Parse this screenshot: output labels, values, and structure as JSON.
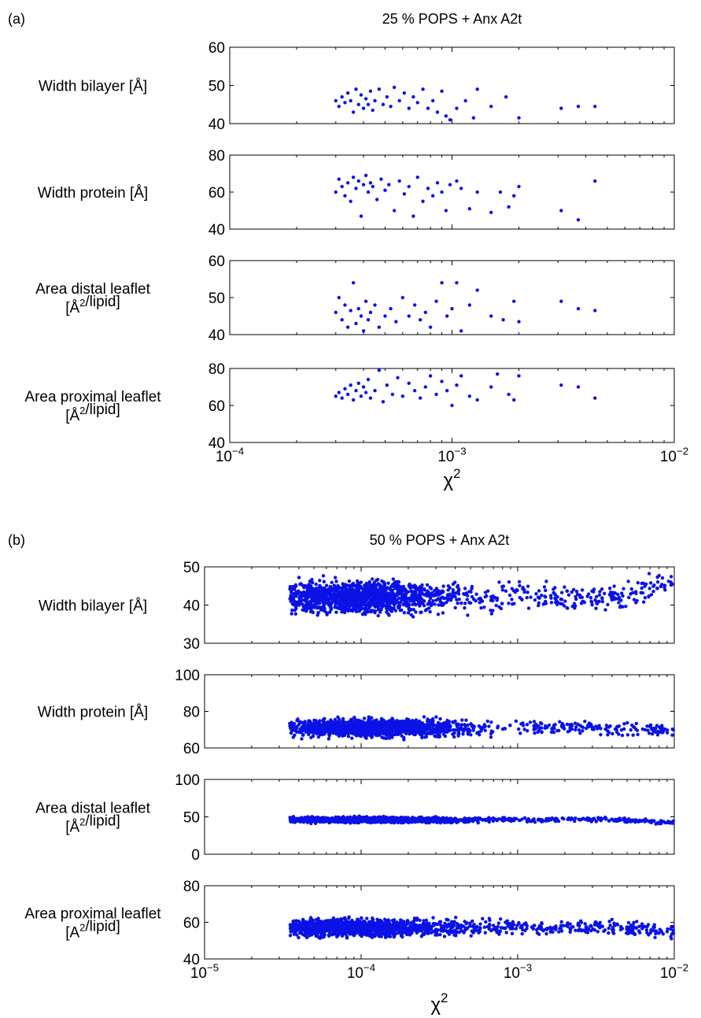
{
  "figure": {
    "panel_a_tag": "(a)",
    "panel_b_tag": "(b)"
  },
  "chart_data": [
    {
      "type": "scatter",
      "panel": "(a)",
      "title": "25 % POPS + Anx A2t",
      "xlabel": "χ²",
      "x_scale": "log",
      "xlim": [
        0.0001,
        0.01
      ],
      "x_tick_labels": [
        "10^-4",
        "10^-3",
        "10^-2"
      ],
      "dot_color": "#0a12e6",
      "subplots": [
        {
          "ylabel_lines": [
            "Width bilayer [Å]"
          ],
          "ylim": [
            40,
            60
          ],
          "y_ticks": [
            40,
            50,
            60
          ],
          "points": [
            [
              0.0003,
              46
            ],
            [
              0.00031,
              44.5
            ],
            [
              0.00032,
              47
            ],
            [
              0.00033,
              45.5
            ],
            [
              0.00034,
              48
            ],
            [
              0.00035,
              46
            ],
            [
              0.00036,
              43
            ],
            [
              0.00037,
              49
            ],
            [
              0.00038,
              45
            ],
            [
              0.00039,
              47.5
            ],
            [
              0.0004,
              44
            ],
            [
              0.00041,
              46.5
            ],
            [
              0.00042,
              45
            ],
            [
              0.00043,
              48.5
            ],
            [
              0.00044,
              43.5
            ],
            [
              0.00045,
              46
            ],
            [
              0.00047,
              49
            ],
            [
              0.00049,
              45
            ],
            [
              0.00051,
              47
            ],
            [
              0.00053,
              44.5
            ],
            [
              0.00055,
              49.5
            ],
            [
              0.00058,
              46
            ],
            [
              0.00061,
              48
            ],
            [
              0.00064,
              44
            ],
            [
              0.00067,
              47
            ],
            [
              0.0007,
              45.5
            ],
            [
              0.00074,
              49
            ],
            [
              0.00078,
              44
            ],
            [
              0.00082,
              46
            ],
            [
              0.00086,
              43
            ],
            [
              0.0009,
              48.5
            ],
            [
              0.00094,
              42
            ],
            [
              0.00098,
              41
            ],
            [
              0.00105,
              44
            ],
            [
              0.00115,
              46
            ],
            [
              0.00125,
              41.5
            ],
            [
              0.0013,
              49
            ],
            [
              0.0015,
              44.5
            ],
            [
              0.00175,
              47
            ],
            [
              0.002,
              41.5
            ],
            [
              0.0031,
              44
            ],
            [
              0.0037,
              44.5
            ],
            [
              0.0044,
              44.5
            ]
          ]
        },
        {
          "ylabel_lines": [
            "Width protein [Å]"
          ],
          "ylim": [
            40,
            80
          ],
          "y_ticks": [
            40,
            60,
            80
          ],
          "points": [
            [
              0.0003,
              60
            ],
            [
              0.00031,
              67
            ],
            [
              0.00032,
              63
            ],
            [
              0.00033,
              58
            ],
            [
              0.00034,
              65
            ],
            [
              0.00035,
              55
            ],
            [
              0.00036,
              68
            ],
            [
              0.00037,
              62
            ],
            [
              0.00038,
              66
            ],
            [
              0.00039,
              47
            ],
            [
              0.0004,
              64
            ],
            [
              0.00041,
              69
            ],
            [
              0.00042,
              60
            ],
            [
              0.00043,
              65
            ],
            [
              0.00044,
              63
            ],
            [
              0.00046,
              56
            ],
            [
              0.00048,
              67
            ],
            [
              0.0005,
              61
            ],
            [
              0.00052,
              64
            ],
            [
              0.00055,
              50
            ],
            [
              0.00058,
              66
            ],
            [
              0.00061,
              59
            ],
            [
              0.00064,
              63
            ],
            [
              0.00067,
              47
            ],
            [
              0.0007,
              68
            ],
            [
              0.00074,
              55
            ],
            [
              0.00078,
              62
            ],
            [
              0.00082,
              58
            ],
            [
              0.00086,
              65
            ],
            [
              0.0009,
              60
            ],
            [
              0.00094,
              50
            ],
            [
              0.00098,
              64
            ],
            [
              0.00105,
              66
            ],
            [
              0.0011,
              62
            ],
            [
              0.0012,
              51
            ],
            [
              0.0013,
              60
            ],
            [
              0.0015,
              49
            ],
            [
              0.00165,
              60
            ],
            [
              0.0018,
              52
            ],
            [
              0.0019,
              58
            ],
            [
              0.002,
              63
            ],
            [
              0.0031,
              50
            ],
            [
              0.0037,
              45
            ],
            [
              0.0044,
              66
            ]
          ]
        },
        {
          "ylabel_lines": [
            "Area distal leaflet",
            "[Å²/lipid]"
          ],
          "ylim": [
            40,
            60
          ],
          "y_ticks": [
            40,
            50,
            60
          ],
          "points": [
            [
              0.0003,
              46
            ],
            [
              0.00031,
              50
            ],
            [
              0.00032,
              44
            ],
            [
              0.00033,
              48
            ],
            [
              0.00034,
              42
            ],
            [
              0.00035,
              46.5
            ],
            [
              0.00036,
              54
            ],
            [
              0.00037,
              43
            ],
            [
              0.00038,
              47
            ],
            [
              0.00039,
              45
            ],
            [
              0.0004,
              41
            ],
            [
              0.00041,
              49
            ],
            [
              0.00042,
              44
            ],
            [
              0.00043,
              46
            ],
            [
              0.00045,
              48
            ],
            [
              0.00047,
              42
            ],
            [
              0.0005,
              45
            ],
            [
              0.00053,
              47
            ],
            [
              0.00056,
              43.5
            ],
            [
              0.0006,
              50
            ],
            [
              0.00064,
              45
            ],
            [
              0.00068,
              48
            ],
            [
              0.00072,
              44
            ],
            [
              0.00076,
              46
            ],
            [
              0.0008,
              42
            ],
            [
              0.00085,
              49
            ],
            [
              0.0009,
              54
            ],
            [
              0.00095,
              45
            ],
            [
              0.001,
              47
            ],
            [
              0.00105,
              54
            ],
            [
              0.0011,
              41
            ],
            [
              0.0012,
              48
            ],
            [
              0.0013,
              52
            ],
            [
              0.0015,
              45
            ],
            [
              0.0017,
              44
            ],
            [
              0.0019,
              49
            ],
            [
              0.002,
              43.5
            ],
            [
              0.0031,
              49
            ],
            [
              0.0037,
              47
            ],
            [
              0.0044,
              46.5
            ]
          ]
        },
        {
          "ylabel_lines": [
            "Area proximal leaflet",
            "[Å²/lipid]"
          ],
          "ylim": [
            40,
            80
          ],
          "y_ticks": [
            40,
            60,
            80
          ],
          "points": [
            [
              0.0003,
              65
            ],
            [
              0.00031,
              67
            ],
            [
              0.00032,
              64
            ],
            [
              0.00033,
              69
            ],
            [
              0.00034,
              66
            ],
            [
              0.00035,
              71
            ],
            [
              0.00036,
              63
            ],
            [
              0.00037,
              68
            ],
            [
              0.00038,
              72
            ],
            [
              0.00039,
              65
            ],
            [
              0.0004,
              70
            ],
            [
              0.00041,
              67
            ],
            [
              0.00042,
              74
            ],
            [
              0.00043,
              64
            ],
            [
              0.00045,
              68
            ],
            [
              0.00047,
              79
            ],
            [
              0.00049,
              62
            ],
            [
              0.00051,
              71
            ],
            [
              0.00054,
              66
            ],
            [
              0.00057,
              75
            ],
            [
              0.0006,
              65
            ],
            [
              0.00064,
              72
            ],
            [
              0.00068,
              68
            ],
            [
              0.00072,
              64
            ],
            [
              0.00076,
              70
            ],
            [
              0.0008,
              76
            ],
            [
              0.00085,
              66
            ],
            [
              0.0009,
              73
            ],
            [
              0.00095,
              68
            ],
            [
              0.001,
              60
            ],
            [
              0.00105,
              71
            ],
            [
              0.0011,
              76
            ],
            [
              0.0012,
              65
            ],
            [
              0.0013,
              63
            ],
            [
              0.0015,
              70
            ],
            [
              0.0016,
              77
            ],
            [
              0.0018,
              66
            ],
            [
              0.0019,
              63
            ],
            [
              0.002,
              76
            ],
            [
              0.0031,
              71
            ],
            [
              0.0037,
              70
            ],
            [
              0.0044,
              64
            ]
          ]
        }
      ]
    },
    {
      "type": "scatter",
      "panel": "(b)",
      "title": "50 % POPS + Anx A2t",
      "xlabel": "χ²",
      "x_scale": "log",
      "xlim": [
        1e-05,
        0.01
      ],
      "x_tick_labels": [
        "10^-5",
        "10^-4",
        "10^-3",
        "10^-2"
      ],
      "dot_color": "#0a12e6",
      "point_count_per_subplot": 1500,
      "subplots": [
        {
          "ylabel_lines": [
            "Width bilayer [Å]"
          ],
          "ylim": [
            30,
            50
          ],
          "y_ticks": [
            30,
            40,
            50
          ],
          "cloud": {
            "x_range": [
              3.5e-05,
              0.01
            ],
            "x_peak": 0.0001,
            "y_center": 42,
            "y_spread": 2.8,
            "y_trend_end": 46
          }
        },
        {
          "ylabel_lines": [
            "Width protein [Å]"
          ],
          "ylim": [
            60,
            100
          ],
          "y_ticks": [
            60,
            80,
            100
          ],
          "cloud": {
            "x_range": [
              3.5e-05,
              0.01
            ],
            "x_peak": 0.00012,
            "y_center": 71,
            "y_spread": 3.2,
            "y_trend_end": 70
          }
        },
        {
          "ylabel_lines": [
            "Area distal leaflet",
            "[Å²/lipid]"
          ],
          "ylim": [
            0,
            100
          ],
          "y_ticks": [
            0,
            50,
            100
          ],
          "cloud": {
            "x_range": [
              3.5e-05,
              0.01
            ],
            "x_peak": 0.00011,
            "y_center": 46,
            "y_spread": 2.5,
            "y_trend_end": 42
          }
        },
        {
          "ylabel_lines": [
            "Area proximal leaflet",
            "[A²/lipid]"
          ],
          "ylim": [
            40,
            80
          ],
          "y_ticks": [
            40,
            60,
            80
          ],
          "cloud": {
            "x_range": [
              3.5e-05,
              0.01
            ],
            "x_peak": 0.0001,
            "y_center": 57,
            "y_spread": 3.2,
            "y_trend_end": 55
          }
        }
      ]
    }
  ]
}
